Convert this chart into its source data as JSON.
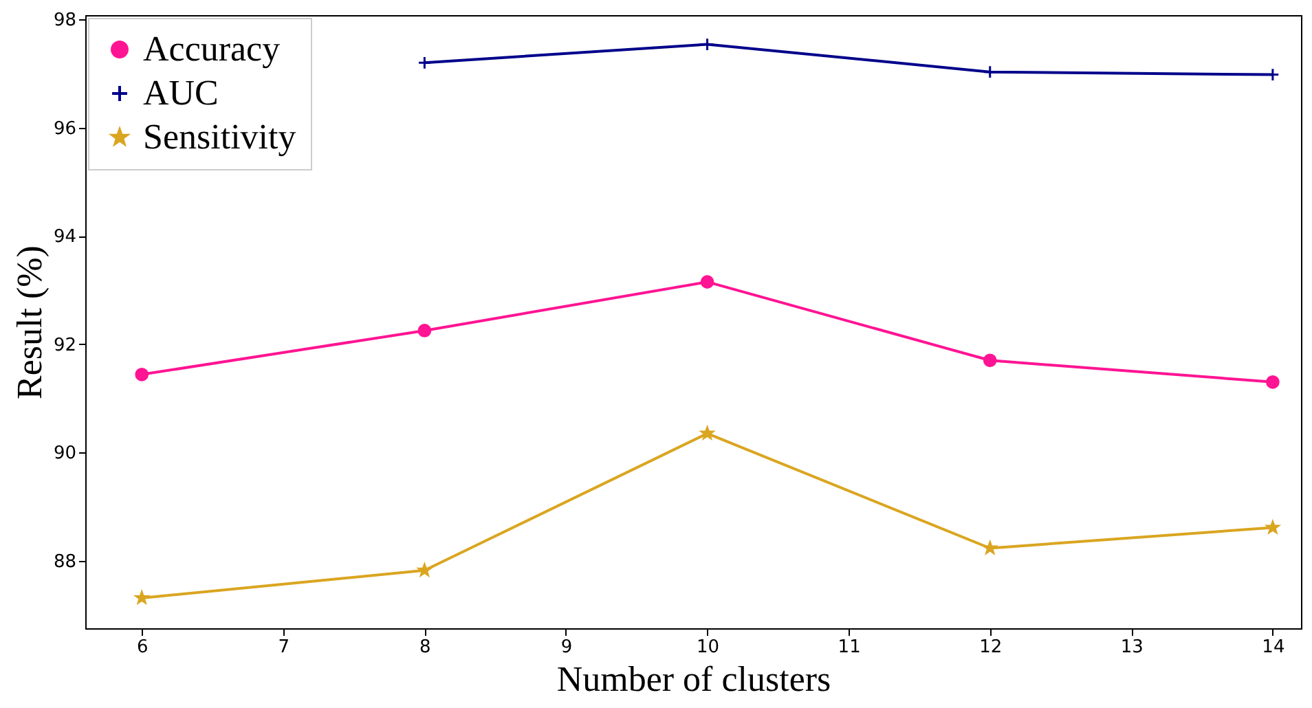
{
  "chart_data": {
    "type": "line",
    "xlabel": "Number of clusters",
    "ylabel": "Result (%)",
    "x": [
      6,
      8,
      10,
      12,
      14
    ],
    "series": [
      {
        "name": "Accuracy",
        "color": "#ff1493",
        "marker": "circle",
        "values": [
          91.44,
          92.25,
          93.15,
          91.7,
          91.3
        ]
      },
      {
        "name": "AUC",
        "color": "#00008b",
        "marker": "cross",
        "values": [
          null,
          97.2,
          97.54,
          97.03,
          96.98
        ]
      },
      {
        "name": "Sensitivity",
        "color": "#daa520",
        "marker": "star",
        "values": [
          87.31,
          87.82,
          90.35,
          88.23,
          88.61
        ]
      }
    ],
    "xlim": [
      5.6,
      14.2
    ],
    "ylim": [
      86.75,
      98.08
    ],
    "xticks": [
      6,
      7,
      8,
      9,
      10,
      11,
      12,
      13,
      14
    ],
    "yticks": [
      88,
      90,
      92,
      94,
      96,
      98
    ],
    "grid": false,
    "legend": "top left",
    "line_style": "solid"
  }
}
